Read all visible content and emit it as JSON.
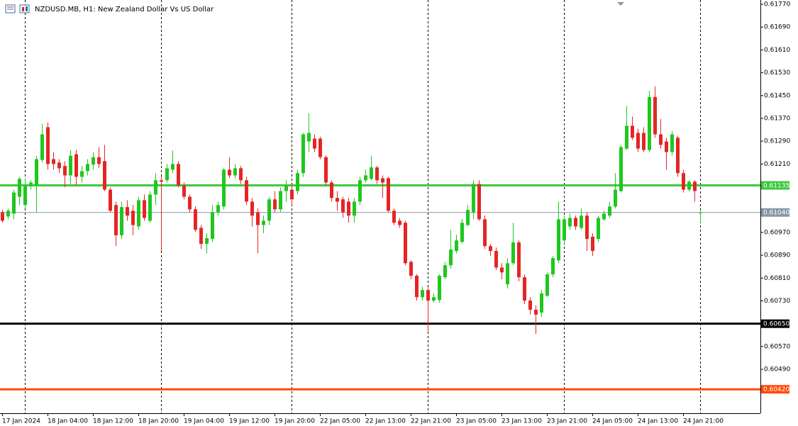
{
  "chart_data": {
    "type": "candlestick",
    "title": "NZDUSD.MB, H1:  New Zealand Dollar Vs US Dollar",
    "categories": [
      "17 Jan 2024",
      null,
      null,
      null,
      null,
      null,
      null,
      null,
      "18 Jan 04:00",
      null,
      null,
      null,
      null,
      null,
      null,
      null,
      "18 Jan 12:00",
      null,
      null,
      null,
      null,
      null,
      null,
      null,
      "18 Jan 20:00",
      null,
      null,
      null,
      null,
      null,
      null,
      null,
      "19 Jan 04:00",
      null,
      null,
      null,
      null,
      null,
      null,
      null,
      "19 Jan 12:00",
      null,
      null,
      null,
      null,
      null,
      null,
      null,
      "19 Jan 20:00",
      null,
      null,
      null,
      null,
      null,
      null,
      null,
      "22 Jan 05:00",
      null,
      null,
      null,
      null,
      null,
      null,
      null,
      "22 Jan 13:00",
      null,
      null,
      null,
      null,
      null,
      null,
      null,
      "22 Jan 21:00",
      null,
      null,
      null,
      null,
      null,
      null,
      null,
      "23 Jan 05:00",
      null,
      null,
      null,
      null,
      null,
      null,
      null,
      "23 Jan 13:00",
      null,
      null,
      null,
      null,
      null,
      null,
      null,
      "23 Jan 21:00",
      null,
      null,
      null,
      null,
      null,
      null,
      null,
      "24 Jan 05:00",
      null,
      null,
      null,
      null,
      null,
      null,
      null,
      "24 Jan 13:00",
      null,
      null,
      null,
      null,
      null,
      null,
      null,
      "24 Jan 21:00",
      null,
      null,
      null
    ],
    "open": [
      0.61041,
      0.61026,
      0.61036,
      0.61095,
      0.61066,
      0.61135,
      0.61135,
      0.61224,
      0.61339,
      0.61227,
      0.61215,
      0.61203,
      0.6117,
      0.61244,
      0.61165,
      0.61185,
      0.61208,
      0.61234,
      0.6122,
      0.6112,
      0.61066,
      0.6096,
      0.61059,
      0.61046,
      0.60991,
      0.61083,
      0.61011,
      0.61103,
      0.61153,
      0.61153,
      0.6119,
      0.6121,
      0.61135,
      0.61095,
      0.61051,
      0.60986,
      0.6093,
      0.60947,
      0.61041,
      0.61061,
      0.6119,
      0.6117,
      0.61195,
      0.61153,
      0.61078,
      0.61041,
      0.60996,
      0.61011,
      0.61086,
      0.61051,
      0.61115,
      0.6112,
      0.61115,
      0.61178,
      0.61289,
      0.61299,
      0.61299,
      0.61234,
      0.61145,
      0.61091,
      0.61086,
      0.61078,
      0.61029,
      0.61078,
      0.61153,
      0.61158,
      0.61198,
      0.6116,
      0.6116,
      0.61046,
      0.61011,
      0.61004,
      0.60867,
      0.60818,
      0.60743,
      0.60768,
      0.60731,
      0.60733,
      0.60813,
      0.60855,
      0.60905,
      0.60937,
      0.60996,
      0.61041,
      0.6114,
      0.61016,
      0.60922,
      0.60905,
      0.60847,
      0.60788,
      0.60862,
      0.60935,
      0.60813,
      0.60731,
      0.60699,
      0.60689,
      0.60748,
      0.60823,
      0.60872,
      0.60942,
      0.60991,
      0.61021,
      0.60986,
      0.61029,
      0.60955,
      0.60947,
      0.61016,
      0.61029,
      0.61061,
      0.61115,
      0.61264,
      0.61344,
      0.61319,
      0.61319,
      0.61259,
      0.61445,
      0.61314,
      0.61289,
      0.61252,
      0.61302,
      0.61178,
      0.6112,
      0.61148,
      0.61038
    ],
    "high": [
      0.61049,
      0.61054,
      0.6112,
      0.61165,
      0.6116,
      0.61153,
      0.61239,
      0.61351,
      0.61356,
      0.61252,
      0.61227,
      0.6122,
      0.61259,
      0.61259,
      0.61203,
      0.61227,
      0.61252,
      0.61269,
      0.61277,
      0.61128,
      0.61078,
      0.61078,
      0.61083,
      0.61066,
      0.61095,
      0.61103,
      0.61115,
      0.61178,
      0.61165,
      0.6121,
      0.61257,
      0.6122,
      0.61145,
      0.61103,
      0.61061,
      0.60996,
      0.60967,
      0.61066,
      0.61078,
      0.61195,
      0.61234,
      0.6121,
      0.61203,
      0.61165,
      0.61091,
      0.61054,
      0.61029,
      0.61095,
      0.61115,
      0.61128,
      0.61153,
      0.61135,
      0.6119,
      0.61319,
      0.61388,
      0.61314,
      0.61306,
      0.61239,
      0.61153,
      0.61115,
      0.61095,
      0.61091,
      0.61091,
      0.61165,
      0.6119,
      0.61239,
      0.61203,
      0.6117,
      0.61165,
      0.61054,
      0.61021,
      0.61011,
      0.60872,
      0.60823,
      0.6078,
      0.6078,
      0.60756,
      0.60823,
      0.60867,
      0.60979,
      0.60962,
      0.61016,
      0.61066,
      0.61153,
      0.61153,
      0.61029,
      0.6093,
      0.60917,
      0.60862,
      0.6088,
      0.61004,
      0.60942,
      0.60823,
      0.60743,
      0.60714,
      0.60768,
      0.6083,
      0.60887,
      0.61078,
      0.61029,
      0.61036,
      0.61029,
      0.61054,
      0.61041,
      0.60967,
      0.61029,
      0.61046,
      0.61078,
      0.61178,
      0.61277,
      0.61413,
      0.61376,
      0.61334,
      0.61339,
      0.61467,
      0.61482,
      0.61368,
      0.61302,
      0.61326,
      0.61309,
      0.6119,
      0.61153,
      0.61153,
      0.61049
    ],
    "low": [
      0.61004,
      0.61016,
      0.61016,
      0.61066,
      0.61054,
      0.6112,
      0.61041,
      0.61215,
      0.6119,
      0.6119,
      0.61178,
      0.61128,
      0.6114,
      0.61135,
      0.61145,
      0.6117,
      0.6119,
      0.61195,
      0.61115,
      0.61041,
      0.60922,
      0.60947,
      0.61011,
      0.6096,
      0.60979,
      0.61011,
      0.61004,
      0.61066,
      0.60905,
      0.61145,
      0.61178,
      0.61128,
      0.61086,
      0.61041,
      0.60971,
      0.60912,
      0.60897,
      0.60937,
      0.61029,
      0.61051,
      0.6116,
      0.6116,
      0.6114,
      0.61066,
      0.60991,
      0.60897,
      0.60967,
      0.60996,
      0.61041,
      0.61041,
      0.61078,
      0.61066,
      0.61103,
      0.61165,
      0.61252,
      0.61252,
      0.61227,
      0.61135,
      0.61078,
      0.61046,
      0.61021,
      0.61004,
      0.61004,
      0.61066,
      0.61145,
      0.61153,
      0.6114,
      0.61091,
      0.61041,
      0.60996,
      0.60986,
      0.60855,
      0.60806,
      0.60731,
      0.60731,
      0.60619,
      0.60723,
      0.60723,
      0.60806,
      0.60843,
      0.60897,
      0.6093,
      0.60991,
      0.61016,
      0.61011,
      0.60912,
      0.60887,
      0.60838,
      0.60806,
      0.60773,
      0.60855,
      0.60798,
      0.60719,
      0.60682,
      0.60614,
      0.60674,
      0.60743,
      0.60813,
      0.60862,
      0.6093,
      0.60979,
      0.60979,
      0.60979,
      0.60905,
      0.60887,
      0.60937,
      0.61011,
      0.61021,
      0.61054,
      0.6111,
      0.61259,
      0.61294,
      0.61252,
      0.61252,
      0.61252,
      0.61302,
      0.61264,
      0.6119,
      0.61239,
      0.61165,
      0.6111,
      0.61115,
      0.61078,
      0.61004
    ],
    "close": [
      0.61011,
      0.61046,
      0.6111,
      0.61158,
      0.61133,
      0.61145,
      0.61227,
      0.61314,
      0.6121,
      0.6121,
      0.61195,
      0.6117,
      0.61239,
      0.61165,
      0.61185,
      0.6121,
      0.61234,
      0.6121,
      0.6112,
      0.61046,
      0.6096,
      0.61059,
      0.61029,
      0.60996,
      0.61083,
      0.61021,
      0.61103,
      0.61153,
      0.61148,
      0.61195,
      0.6121,
      0.61135,
      0.61095,
      0.61051,
      0.60979,
      0.6093,
      0.6095,
      0.61041,
      0.61066,
      0.6119,
      0.6117,
      0.61195,
      0.61153,
      0.61078,
      0.61029,
      0.60996,
      0.61011,
      0.61086,
      0.61051,
      0.61115,
      0.61135,
      0.61086,
      0.61178,
      0.61314,
      0.61319,
      0.61264,
      0.61234,
      0.61145,
      0.61091,
      0.61078,
      0.61041,
      0.61029,
      0.61078,
      0.61153,
      0.6117,
      0.61198,
      0.61153,
      0.61145,
      0.61046,
      0.61004,
      0.60996,
      0.60862,
      0.60818,
      0.60743,
      0.60768,
      0.60731,
      0.60743,
      0.60818,
      0.60855,
      0.6091,
      0.60942,
      0.61004,
      0.61049,
      0.6114,
      0.61016,
      0.60922,
      0.60905,
      0.60847,
      0.6083,
      0.60862,
      0.60935,
      0.60813,
      0.60731,
      0.60699,
      0.60682,
      0.60756,
      0.60823,
      0.6088,
      0.61016,
      0.61016,
      0.61021,
      0.60991,
      0.61029,
      0.60947,
      0.60905,
      0.61021,
      0.61036,
      0.61061,
      0.6112,
      0.61269,
      0.61344,
      0.61302,
      0.61264,
      0.61259,
      0.61445,
      0.61314,
      0.61277,
      0.61252,
      0.61314,
      0.61178,
      0.6112,
      0.61148,
      0.61115,
      0.6104
    ],
    "up_color": "#1fc71f",
    "down_color": "#e52525",
    "ylim": [
      0.60336,
      0.61785
    ],
    "yticks": [
      {
        "value": 0.6177,
        "label": "0.61770"
      },
      {
        "value": 0.6169,
        "label": "0.61690"
      },
      {
        "value": 0.6161,
        "label": "0.61610"
      },
      {
        "value": 0.6153,
        "label": "0.61530"
      },
      {
        "value": 0.6145,
        "label": "0.61450"
      },
      {
        "value": 0.6137,
        "label": "0.61370"
      },
      {
        "value": 0.6129,
        "label": "0.61290"
      },
      {
        "value": 0.6121,
        "label": "0.61210"
      },
      {
        "value": 0.6097,
        "label": "0.60970"
      },
      {
        "value": 0.6089,
        "label": "0.60890"
      },
      {
        "value": 0.6081,
        "label": "0.60810"
      },
      {
        "value": 0.6073,
        "label": "0.60730"
      },
      {
        "value": 0.6057,
        "label": "0.60570"
      },
      {
        "value": 0.6049,
        "label": "0.60490"
      }
    ],
    "hlines": [
      {
        "value": 0.61135,
        "label": "0.61135",
        "color": "#3cc93c",
        "width": 3
      },
      {
        "value": 0.6104,
        "label": "0.61040",
        "color": "#8796a3",
        "width": 1
      },
      {
        "value": 0.6065,
        "label": "0.60650",
        "color": "#000000",
        "width": 3
      },
      {
        "value": 0.6042,
        "label": "0.60420",
        "color": "#ff4a0a",
        "width": 3
      }
    ]
  }
}
